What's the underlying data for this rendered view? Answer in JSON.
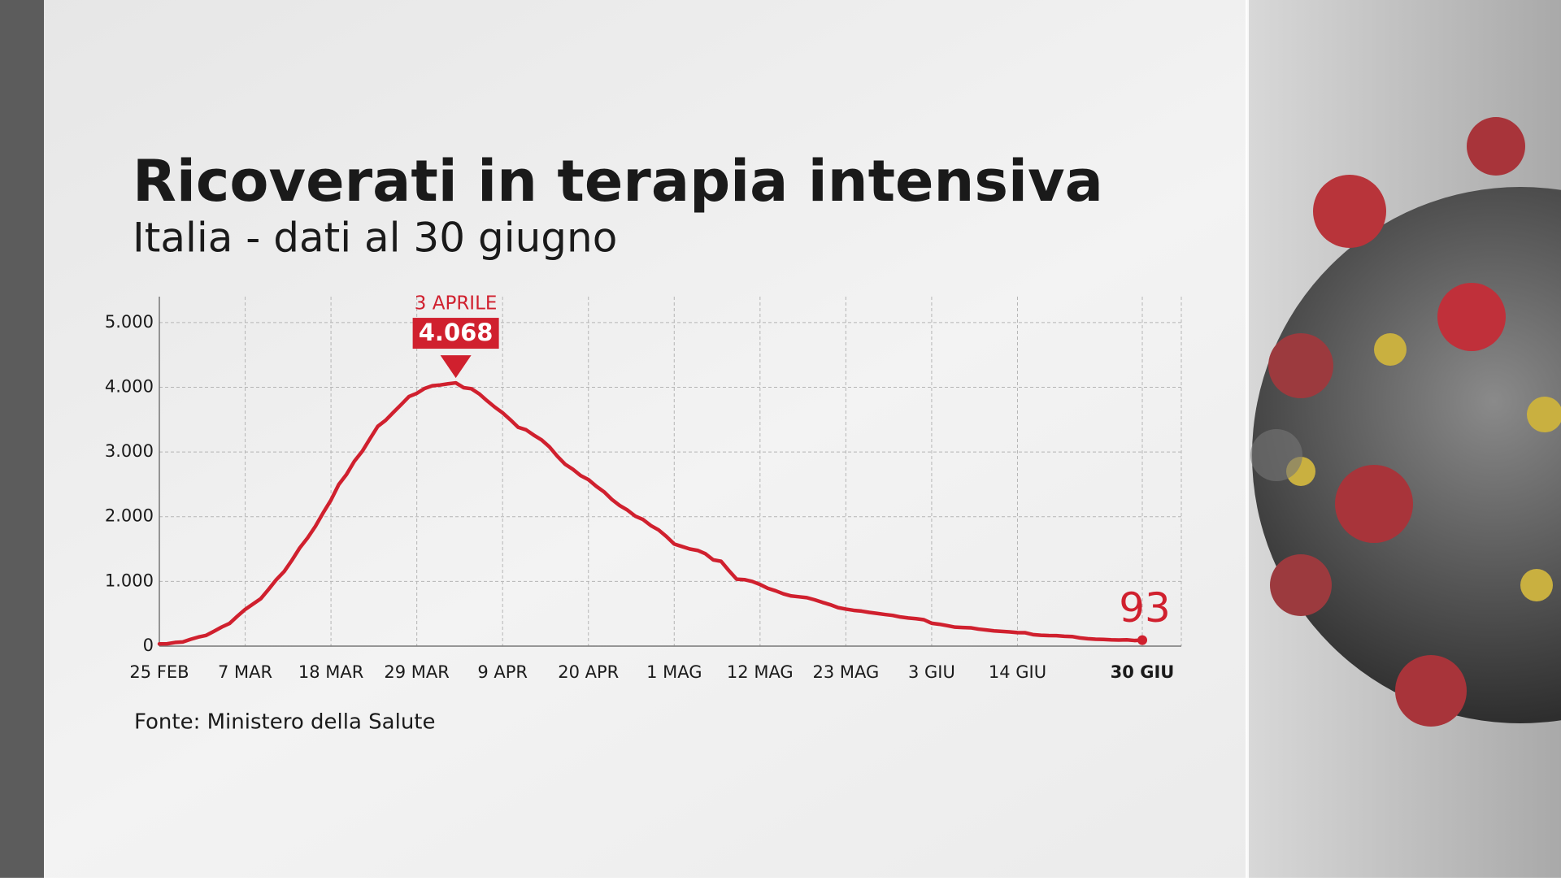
{
  "chart_data": {
    "type": "line",
    "title": "Ricoverati in terapia intensiva",
    "subtitle": "Italia - dati al 30 giugno",
    "source": "Fonte: Ministero della Salute",
    "peak_label": "3 APRILE",
    "color": "#d0202e",
    "categories": [
      "25 FEB",
      null,
      null,
      null,
      null,
      null,
      null,
      null,
      null,
      null,
      null,
      "7 MAR",
      null,
      null,
      null,
      null,
      null,
      null,
      null,
      null,
      null,
      null,
      "18 MAR",
      null,
      null,
      null,
      null,
      null,
      null,
      null,
      null,
      null,
      null,
      "29 MAR",
      null,
      null,
      null,
      null,
      null,
      null,
      null,
      null,
      null,
      null,
      "9 APR",
      null,
      null,
      null,
      null,
      null,
      null,
      null,
      null,
      null,
      null,
      "20 APR",
      null,
      null,
      null,
      null,
      null,
      null,
      null,
      null,
      null,
      null,
      "1 MAG",
      null,
      null,
      null,
      null,
      null,
      null,
      null,
      null,
      null,
      null,
      "12 MAG",
      null,
      null,
      null,
      null,
      null,
      null,
      null,
      null,
      null,
      null,
      "23 MAG",
      null,
      null,
      null,
      null,
      null,
      null,
      null,
      null,
      null,
      null,
      "3 GIU",
      null,
      null,
      null,
      null,
      null,
      null,
      null,
      null,
      null,
      null,
      "14 GIU",
      null,
      null,
      null,
      null,
      null,
      null,
      null,
      null,
      null,
      null,
      null,
      null,
      null,
      null,
      null,
      "30 GIU"
    ],
    "values": [
      35,
      36,
      56,
      64,
      105,
      140,
      166,
      229,
      295,
      351,
      462,
      567,
      650,
      733,
      877,
      1028,
      1153,
      1328,
      1518,
      1672,
      1851,
      2060,
      2257,
      2498,
      2655,
      2857,
      3009,
      3204,
      3396,
      3489,
      3612,
      3732,
      3856,
      3906,
      3981,
      4023,
      4035,
      4053,
      4068,
      3994,
      3977,
      3898,
      3792,
      3693,
      3605,
      3497,
      3381,
      3343,
      3260,
      3186,
      3079,
      2936,
      2812,
      2733,
      2635,
      2573,
      2471,
      2384,
      2267,
      2173,
      2102,
      2009,
      1956,
      1863,
      1795,
      1694,
      1578,
      1539,
      1501,
      1479,
      1427,
      1333,
      1311,
      1168,
      1034,
      1027,
      999,
      952,
      893,
      855,
      808,
      775,
      762,
      749,
      716,
      676,
      640,
      595,
      572,
      553,
      541,
      521,
      505,
      489,
      475,
      450,
      435,
      424,
      408,
      353,
      338,
      316,
      293,
      287,
      283,
      263,
      249,
      236,
      227,
      220,
      209,
      207,
      178,
      168,
      163,
      161,
      152,
      148,
      127,
      115,
      107,
      103,
      97,
      94,
      97,
      87,
      93
    ],
    "value_labels": [
      null,
      null,
      null,
      null,
      null,
      null,
      null,
      null,
      null,
      null,
      null,
      null,
      null,
      null,
      null,
      null,
      null,
      null,
      null,
      null,
      null,
      null,
      null,
      null,
      null,
      null,
      null,
      null,
      null,
      null,
      null,
      null,
      null,
      null,
      null,
      null,
      null,
      null,
      "4.068",
      null,
      null,
      null,
      null,
      null,
      null,
      null,
      null,
      null,
      null,
      null,
      null,
      null,
      null,
      null,
      null,
      null,
      null,
      null,
      null,
      null,
      null,
      null,
      null,
      null,
      null,
      null,
      null,
      null,
      null,
      null,
      null,
      null,
      null,
      null,
      null,
      null,
      null,
      null,
      null,
      null,
      null,
      null,
      null,
      null,
      null,
      null,
      null,
      null,
      null,
      null,
      null,
      null,
      null,
      null,
      null,
      null,
      null,
      null,
      null,
      null,
      null,
      null,
      null,
      null,
      null,
      null,
      null,
      null,
      null,
      null,
      null,
      null,
      null,
      null,
      null,
      null,
      null,
      null,
      null,
      null,
      null,
      null,
      null,
      null,
      null,
      null,
      "93"
    ],
    "ylim": [
      0,
      5400
    ],
    "yticks": [
      0,
      {
        "value": 1000,
        "label": "1.000"
      },
      {
        "value": 2000,
        "label": "2.000"
      },
      {
        "value": 3000,
        "label": "3.000"
      },
      {
        "value": 4000,
        "label": "4.000"
      },
      {
        "value": 5000,
        "label": "5.000"
      }
    ],
    "grid": true
  }
}
